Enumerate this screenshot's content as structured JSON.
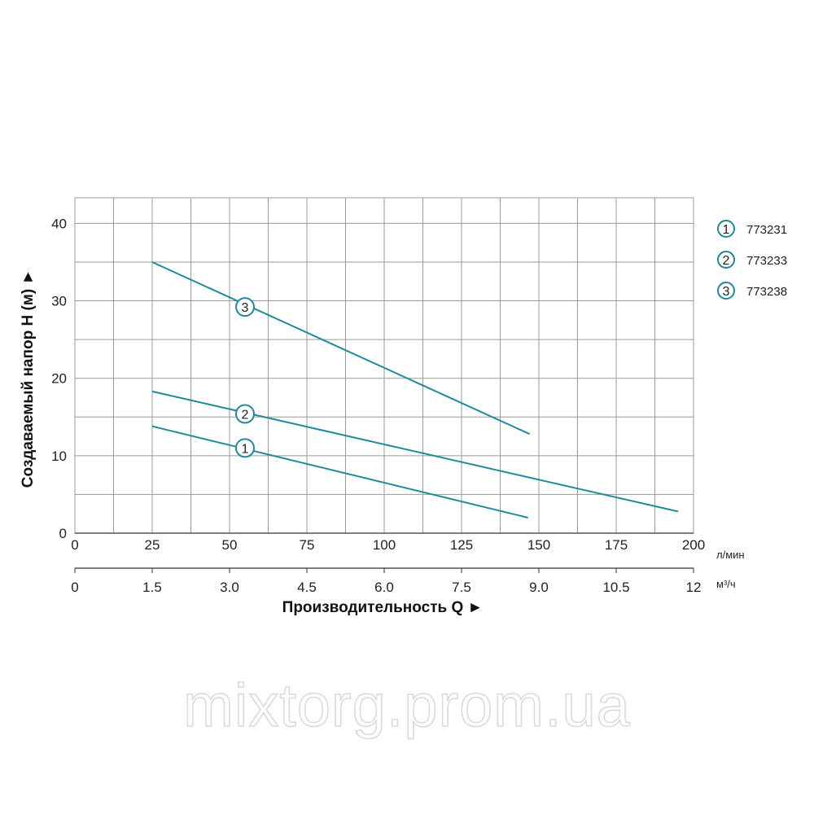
{
  "chart_data": {
    "type": "line",
    "xlabel": "Производительность Q ►",
    "ylabel": "Создаваемый напор H (м) ►",
    "x_unit_primary": "л/мин",
    "x_unit_secondary": "м³/ч",
    "xlim": [
      0,
      200
    ],
    "ylim": [
      0,
      40
    ],
    "x_ticks_primary": [
      0,
      25,
      50,
      75,
      100,
      125,
      150,
      175,
      200
    ],
    "x_ticks_primary_labels": [
      "0",
      "25",
      "50",
      "75",
      "100",
      "125",
      "150",
      "175",
      "200"
    ],
    "x_ticks_secondary": [
      0,
      25,
      50,
      75,
      100,
      125,
      150,
      175,
      200
    ],
    "x_ticks_secondary_labels": [
      "0",
      "1.5",
      "3.0",
      "4.5",
      "6.0",
      "7.5",
      "9.0",
      "10.5",
      "12"
    ],
    "y_ticks": [
      0,
      10,
      20,
      30,
      40
    ],
    "y_ticks_labels": [
      "0",
      "10",
      "20",
      "30",
      "40"
    ],
    "grid": true,
    "line_color": "#1e8a9a",
    "series": [
      {
        "name": "773231",
        "label": "1",
        "x": [
          25,
          146.5
        ],
        "y": [
          13.8,
          2.0
        ],
        "marker_at": [
          55,
          11.0
        ]
      },
      {
        "name": "773233",
        "label": "2",
        "x": [
          25,
          195
        ],
        "y": [
          18.3,
          2.8
        ],
        "marker_at": [
          55,
          15.4
        ]
      },
      {
        "name": "773238",
        "label": "3",
        "x": [
          25,
          147
        ],
        "y": [
          35.0,
          12.8
        ],
        "marker_at": [
          55,
          29.2
        ]
      }
    ],
    "legend": {
      "placement": "right",
      "items": [
        {
          "label": "1",
          "text": "773231"
        },
        {
          "label": "2",
          "text": "773233"
        },
        {
          "label": "3",
          "text": "773238"
        }
      ]
    }
  },
  "watermark": "mixtorg.prom.ua"
}
